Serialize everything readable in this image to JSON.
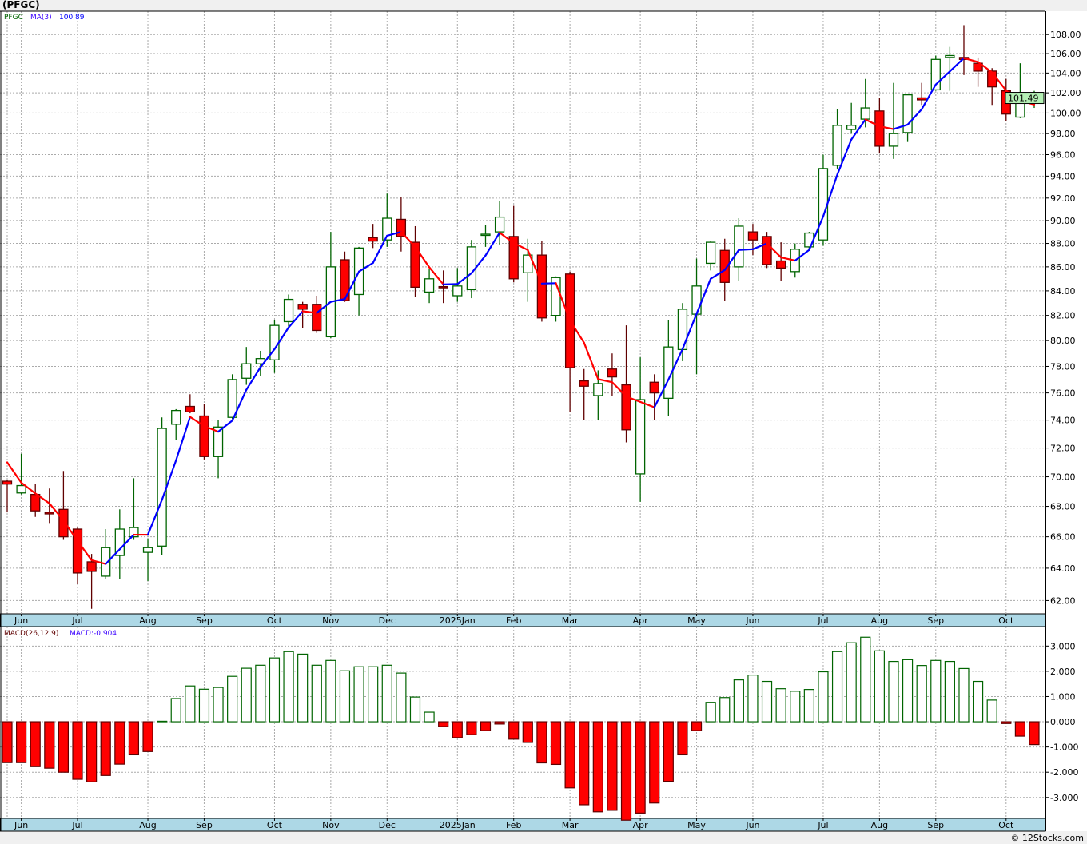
{
  "title": "(PFGC)",
  "footer": "© 12Stocks.com",
  "colors": {
    "up": "#006400",
    "down_fill": "#ff0000",
    "down_line": "#600000",
    "ma_up": "#0000ff",
    "ma_down": "#ff0000",
    "axis_strip": "#add8e6",
    "last_price_bg": "#b4f0b4"
  },
  "chart_data": [
    {
      "type": "candlestick",
      "symbol": "PFGC",
      "legend": {
        "symbol": "PFGC",
        "ma_label": "MA(3)",
        "ma_value": "100.89"
      },
      "last_price": "101.49",
      "y_scale": "log",
      "ylim": [
        61.2,
        110.5
      ],
      "yticks": [
        "62.00",
        "64.00",
        "66.00",
        "68.00",
        "70.00",
        "72.00",
        "74.00",
        "76.00",
        "78.00",
        "80.00",
        "82.00",
        "84.00",
        "86.00",
        "88.00",
        "90.00",
        "92.00",
        "94.00",
        "96.00",
        "98.00",
        "100.00",
        "102.00",
        "104.00",
        "106.00",
        "108.00"
      ],
      "x_labels": [
        {
          "label": "Jun",
          "index": 1
        },
        {
          "label": "Jul",
          "index": 5
        },
        {
          "label": "Aug",
          "index": 10
        },
        {
          "label": "Sep",
          "index": 14
        },
        {
          "label": "Oct",
          "index": 19
        },
        {
          "label": "Nov",
          "index": 23
        },
        {
          "label": "Dec",
          "index": 27
        },
        {
          "label": "2025Jan",
          "index": 32
        },
        {
          "label": "Feb",
          "index": 36
        },
        {
          "label": "Mar",
          "index": 40
        },
        {
          "label": "Apr",
          "index": 45
        },
        {
          "label": "May",
          "index": 49
        },
        {
          "label": "Jun",
          "index": 53
        },
        {
          "label": "Jul",
          "index": 58
        },
        {
          "label": "Aug",
          "index": 62
        },
        {
          "label": "Sep",
          "index": 66
        },
        {
          "label": "Oct",
          "index": 71
        }
      ],
      "ohlc": [
        [
          69.7,
          69.8,
          67.6,
          69.5
        ],
        [
          68.9,
          71.6,
          68.8,
          69.4
        ],
        [
          68.8,
          69.5,
          67.3,
          67.7
        ],
        [
          67.6,
          69.2,
          66.9,
          67.5
        ],
        [
          67.8,
          70.4,
          65.8,
          66.0
        ],
        [
          66.5,
          66.6,
          63.0,
          63.7
        ],
        [
          64.4,
          64.9,
          61.5,
          63.8
        ],
        [
          63.5,
          66.5,
          63.3,
          65.3
        ],
        [
          64.8,
          67.8,
          63.3,
          66.5
        ],
        [
          66.0,
          69.9,
          65.8,
          66.6
        ],
        [
          65.0,
          65.9,
          63.2,
          65.3
        ],
        [
          65.4,
          74.2,
          64.8,
          73.4
        ],
        [
          73.7,
          74.8,
          72.6,
          74.7
        ],
        [
          75.0,
          75.9,
          74.5,
          74.6
        ],
        [
          74.3,
          75.2,
          71.2,
          71.4
        ],
        [
          71.4,
          74.0,
          69.9,
          73.5
        ],
        [
          74.2,
          77.4,
          74.1,
          77.0
        ],
        [
          77.1,
          79.5,
          76.6,
          78.2
        ],
        [
          78.2,
          79.2,
          77.3,
          78.6
        ],
        [
          78.5,
          81.6,
          77.5,
          81.2
        ],
        [
          81.5,
          83.7,
          81.1,
          83.3
        ],
        [
          82.9,
          83.1,
          81.0,
          82.5
        ],
        [
          82.9,
          83.6,
          80.6,
          80.8
        ],
        [
          80.3,
          89.0,
          80.2,
          86.0
        ],
        [
          86.6,
          87.3,
          83.1,
          83.2
        ],
        [
          83.7,
          87.7,
          82.0,
          87.6
        ],
        [
          88.5,
          89.7,
          87.6,
          88.2
        ],
        [
          88.3,
          92.4,
          87.7,
          90.2
        ],
        [
          90.1,
          92.1,
          87.3,
          88.6
        ],
        [
          88.1,
          89.5,
          83.5,
          84.3
        ],
        [
          83.9,
          85.8,
          83.0,
          85.0
        ],
        [
          84.35,
          85.7,
          83.0,
          84.3
        ],
        [
          83.6,
          85.9,
          83.1,
          84.4
        ],
        [
          84.1,
          88.3,
          83.4,
          87.7
        ],
        [
          88.75,
          89.6,
          87.7,
          88.8
        ],
        [
          89.0,
          91.7,
          87.9,
          90.3
        ],
        [
          88.6,
          91.3,
          84.7,
          85.0
        ],
        [
          85.5,
          88.4,
          83.1,
          87.0
        ],
        [
          87.0,
          88.2,
          81.5,
          81.8
        ],
        [
          82.0,
          85.2,
          81.5,
          85.1
        ],
        [
          85.4,
          85.6,
          74.6,
          77.9
        ],
        [
          76.9,
          77.8,
          74.0,
          76.5
        ],
        [
          75.8,
          77.7,
          74.0,
          76.7
        ],
        [
          77.8,
          79.0,
          75.8,
          77.2
        ],
        [
          76.6,
          81.2,
          72.4,
          73.3
        ],
        [
          70.2,
          78.7,
          68.3,
          75.5
        ],
        [
          76.8,
          77.4,
          74.0,
          76.0
        ],
        [
          75.6,
          81.6,
          74.3,
          79.5
        ],
        [
          79.3,
          83.0,
          78.4,
          82.5
        ],
        [
          82.1,
          86.7,
          77.4,
          84.4
        ],
        [
          86.3,
          88.2,
          85.7,
          88.1
        ],
        [
          87.4,
          88.4,
          83.2,
          84.7
        ],
        [
          86.0,
          90.2,
          84.8,
          89.5
        ],
        [
          89.0,
          89.7,
          87.0,
          88.3
        ],
        [
          88.6,
          89.0,
          85.9,
          86.2
        ],
        [
          86.5,
          88.1,
          84.8,
          85.9
        ],
        [
          85.6,
          88.0,
          85.1,
          87.5
        ],
        [
          87.7,
          89.0,
          87.4,
          88.9
        ],
        [
          88.3,
          96.0,
          87.8,
          94.7
        ],
        [
          95.0,
          100.4,
          94.7,
          98.8
        ],
        [
          98.4,
          101.0,
          98.0,
          98.8
        ],
        [
          99.4,
          103.4,
          98.6,
          100.5
        ],
        [
          100.2,
          101.5,
          96.1,
          96.8
        ],
        [
          96.8,
          103.0,
          95.6,
          98.0
        ],
        [
          98.1,
          101.8,
          97.2,
          101.8
        ],
        [
          101.5,
          103.0,
          100.8,
          101.3
        ],
        [
          102.3,
          105.8,
          102.2,
          105.4
        ],
        [
          105.6,
          106.7,
          102.2,
          105.8
        ],
        [
          105.6,
          109.0,
          103.8,
          105.4
        ],
        [
          105.0,
          105.6,
          102.6,
          104.2
        ],
        [
          104.2,
          104.5,
          100.8,
          102.6
        ],
        [
          102.2,
          103.4,
          99.2,
          99.9
        ],
        [
          99.6,
          105.0,
          99.5,
          101.1
        ],
        [
          101.0,
          102.2,
          100.5,
          101.49
        ]
      ]
    },
    {
      "type": "bar",
      "name": "MACD histogram",
      "legend": {
        "label": "MACD(26,12,9)",
        "value_text": "MACD:-0.904"
      },
      "ylim": [
        -3.83,
        3.77
      ],
      "yticks": [
        "-3.000",
        "-2.000",
        "-1.000",
        "0.000",
        "1.000",
        "2.000",
        "3.000"
      ],
      "values": [
        -1.62,
        -1.62,
        -1.78,
        -1.84,
        -2.0,
        -2.28,
        -2.38,
        -2.13,
        -1.68,
        -1.31,
        -1.18,
        0.02,
        0.92,
        1.42,
        1.29,
        1.36,
        1.8,
        2.12,
        2.24,
        2.53,
        2.78,
        2.68,
        2.24,
        2.43,
        2.02,
        2.18,
        2.18,
        2.24,
        1.93,
        0.98,
        0.38,
        -0.19,
        -0.63,
        -0.51,
        -0.35,
        -0.09,
        -0.69,
        -0.82,
        -1.63,
        -1.69,
        -2.62,
        -3.29,
        -3.57,
        -3.51,
        -3.9,
        -3.62,
        -3.22,
        -2.36,
        -1.31,
        -0.35,
        0.77,
        0.96,
        1.66,
        1.85,
        1.6,
        1.31,
        1.21,
        1.28,
        1.98,
        2.78,
        3.13,
        3.35,
        2.81,
        2.39,
        2.46,
        2.23,
        2.43,
        2.39,
        2.11,
        1.6,
        0.86,
        -0.07,
        -0.57,
        -0.904
      ]
    }
  ]
}
